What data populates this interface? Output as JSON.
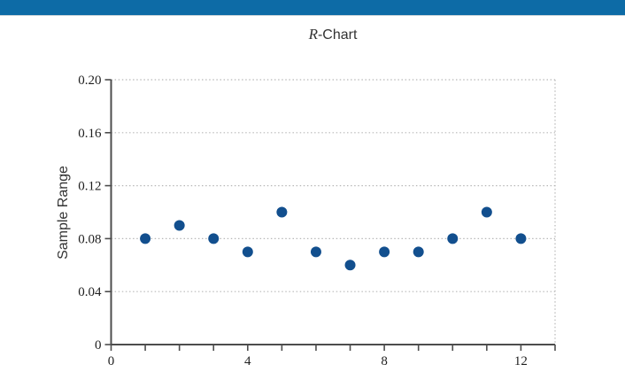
{
  "header": {
    "bar_color": "#0d6ba6"
  },
  "chart_data": {
    "type": "scatter",
    "title": "R-Chart",
    "title_italic_part": "R",
    "title_regular_part": "-Chart",
    "xlabel": "",
    "ylabel": "Sample Range",
    "x": [
      1,
      2,
      3,
      4,
      5,
      6,
      7,
      8,
      9,
      10,
      11,
      12
    ],
    "y": [
      0.08,
      0.09,
      0.08,
      0.07,
      0.1,
      0.07,
      0.06,
      0.07,
      0.07,
      0.08,
      0.1,
      0.08
    ],
    "xlim": [
      0,
      13
    ],
    "ylim": [
      0,
      0.2
    ],
    "x_tick_step": 1,
    "x_ticks_labeled": [
      0,
      4,
      8,
      12
    ],
    "x_tick_label_texts": [
      "0",
      "4",
      "8",
      "12"
    ],
    "y_ticks": [
      0,
      0.04,
      0.08,
      0.12,
      0.16,
      0.2
    ],
    "y_tick_labels": [
      "0",
      "0.04",
      "0.08",
      "0.12",
      "0.16",
      "0.20"
    ],
    "grid": {
      "horizontal": "dotted",
      "vertical": "off",
      "right_border": "dotted"
    },
    "legend": "none",
    "marker": {
      "shape": "circle",
      "color": "#124f8e",
      "radius": 6
    },
    "axis_color": "#4d4d4d",
    "grid_color": "#b8b8b8",
    "label_color": "#1f1f1f"
  }
}
